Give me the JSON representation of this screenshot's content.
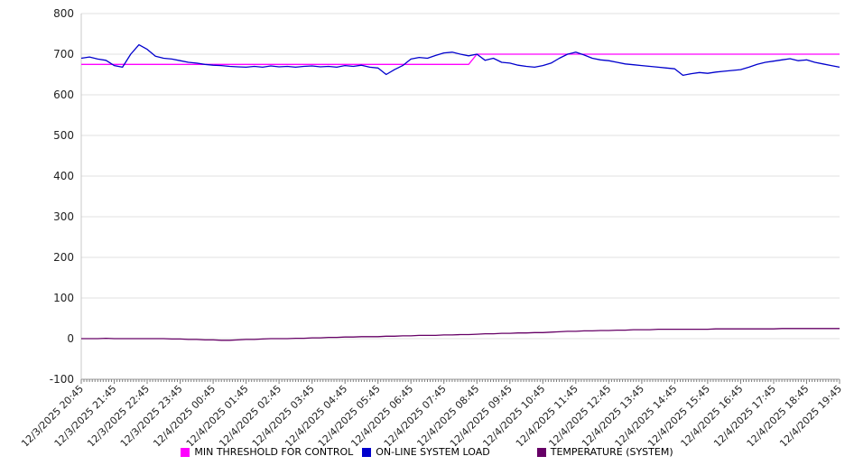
{
  "chart_data": {
    "type": "line",
    "title": "",
    "xlabel": "",
    "ylabel": "",
    "ylim": [
      -100,
      800
    ],
    "y_ticks": [
      800,
      700,
      600,
      500,
      400,
      300,
      200,
      100,
      0,
      -100
    ],
    "grid": true,
    "legend_position": "bottom",
    "points_per_label": 4,
    "x_labels": [
      "12/3/2025 20:45",
      "12/3/2025 21:45",
      "12/3/2025 22:45",
      "12/3/2025 23:45",
      "12/4/2025 00:45",
      "12/4/2025 01:45",
      "12/4/2025 02:45",
      "12/4/2025 03:45",
      "12/4/2025 04:45",
      "12/4/2025 05:45",
      "12/4/2025 06:45",
      "12/4/2025 07:45",
      "12/4/2025 08:45",
      "12/4/2025 09:45",
      "12/4/2025 10:45",
      "12/4/2025 11:45",
      "12/4/2025 12:45",
      "12/4/2025 13:45",
      "12/4/2025 14:45",
      "12/4/2025 15:45",
      "12/4/2025 16:45",
      "12/4/2025 17:45",
      "12/4/2025 18:45",
      "12/4/2025 19:45"
    ],
    "series": [
      {
        "name": "MIN THRESHOLD FOR CONTROL",
        "color": "#ff00ff",
        "segments": [
          {
            "start": 0,
            "end": 48,
            "value": 675
          },
          {
            "start": 48,
            "end": 92,
            "value": 700
          }
        ]
      },
      {
        "name": "ON-LINE SYSTEM LOAD",
        "color": "#0000cd",
        "values": [
          690,
          693,
          688,
          685,
          672,
          668,
          700,
          723,
          712,
          695,
          690,
          688,
          684,
          680,
          678,
          675,
          673,
          672,
          670,
          669,
          668,
          670,
          668,
          671,
          669,
          670,
          668,
          670,
          671,
          669,
          670,
          668,
          672,
          670,
          673,
          668,
          666,
          650,
          662,
          672,
          688,
          692,
          690,
          697,
          703,
          705,
          700,
          696,
          700,
          685,
          690,
          680,
          678,
          673,
          670,
          668,
          672,
          678,
          690,
          700,
          705,
          698,
          690,
          686,
          684,
          680,
          676,
          674,
          672,
          670,
          668,
          666,
          664,
          648,
          652,
          655,
          653,
          656,
          658,
          660,
          662,
          668,
          675,
          680,
          683,
          686,
          689,
          684,
          686,
          680,
          676,
          672,
          668
        ]
      },
      {
        "name": "TEMPERATURE (SYSTEM)",
        "color": "#660066",
        "values": [
          0,
          0,
          0,
          1,
          0,
          0,
          0,
          0,
          0,
          0,
          0,
          -1,
          -1,
          -2,
          -2,
          -3,
          -3,
          -4,
          -4,
          -3,
          -2,
          -2,
          -1,
          0,
          0,
          0,
          1,
          1,
          2,
          2,
          3,
          3,
          4,
          4,
          5,
          5,
          5,
          6,
          6,
          7,
          7,
          8,
          8,
          8,
          9,
          9,
          10,
          10,
          11,
          12,
          12,
          13,
          13,
          14,
          14,
          15,
          15,
          16,
          17,
          18,
          18,
          19,
          19,
          20,
          20,
          21,
          21,
          22,
          22,
          22,
          23,
          23,
          23,
          23,
          23,
          23,
          23,
          24,
          24,
          24,
          24,
          24,
          24,
          24,
          24,
          25,
          25,
          25,
          25,
          25,
          25,
          25,
          25
        ]
      }
    ],
    "colors": {
      "grid": "#e0e0e0",
      "axis": "#999999",
      "left_axis": "#c8c8c8",
      "tick": "#808080",
      "text": "#222222"
    }
  }
}
